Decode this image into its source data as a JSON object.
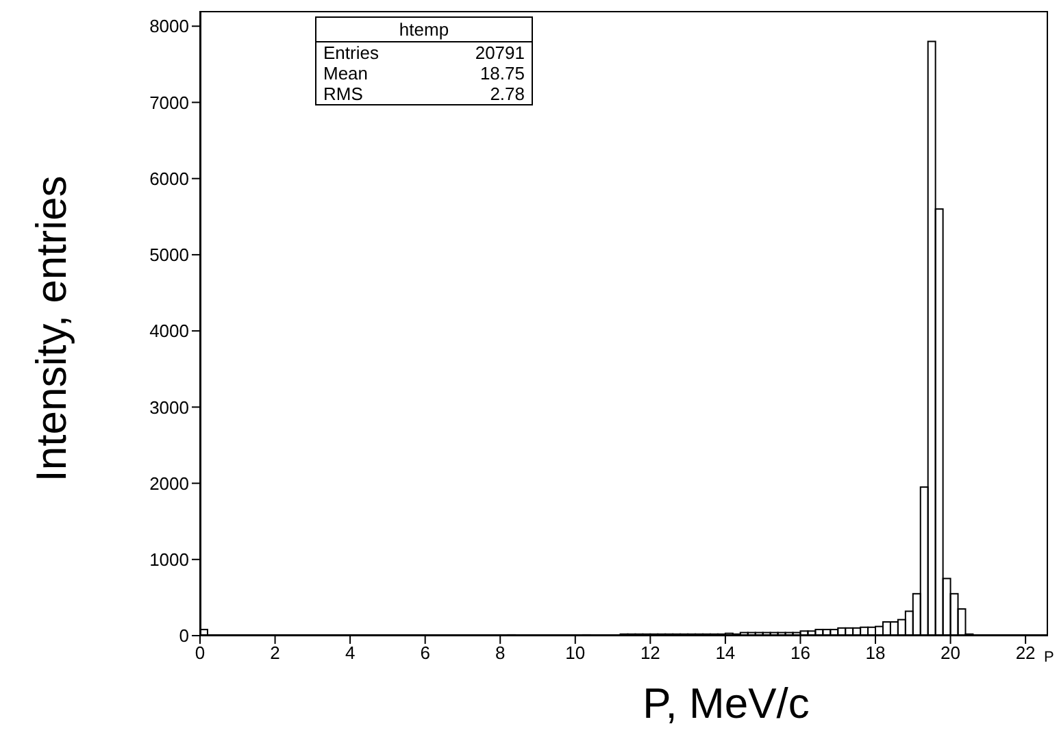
{
  "chart_data": {
    "type": "histogram",
    "xlabel": "P, MeV/c",
    "ylabel": "Intensity, entries",
    "bins": [
      0,
      0.2,
      0.4,
      0.6,
      0.8,
      1,
      1.2,
      1.4,
      1.6,
      1.8,
      2,
      2.2,
      2.4,
      2.6,
      2.8,
      3,
      3.2,
      3.4,
      3.6,
      3.8,
      4,
      4.2,
      4.4,
      4.6,
      4.8,
      5,
      5.2,
      5.4,
      5.6,
      5.8,
      6,
      6.2,
      6.4,
      6.6,
      6.8,
      7,
      7.2,
      7.4,
      7.6,
      7.8,
      8,
      8.2,
      8.4,
      8.6,
      8.8,
      9,
      9.2,
      9.4,
      9.6,
      9.8,
      10,
      10.2,
      10.4,
      10.6,
      10.8,
      11,
      11.2,
      11.4,
      11.6,
      11.8,
      12,
      12.2,
      12.4,
      12.6,
      12.8,
      13,
      13.2,
      13.4,
      13.6,
      13.8,
      14,
      14.2,
      14.4,
      14.6,
      14.8,
      15,
      15.2,
      15.4,
      15.6,
      15.8,
      16,
      16.2,
      16.4,
      16.6,
      16.8,
      17,
      17.2,
      17.4,
      17.6,
      17.8,
      18,
      18.2,
      18.4,
      18.6,
      18.8,
      19,
      19.2,
      19.4,
      19.6,
      19.8,
      20,
      20.2,
      20.4,
      20.6,
      20.8,
      21,
      21.2,
      21.4,
      21.6,
      21.8,
      22,
      22.2,
      22.4,
      22.6
    ],
    "values": [
      80,
      0,
      0,
      0,
      0,
      0,
      0,
      0,
      0,
      0,
      0,
      0,
      0,
      0,
      0,
      0,
      0,
      0,
      0,
      0,
      0,
      0,
      0,
      0,
      0,
      0,
      0,
      0,
      0,
      0,
      0,
      0,
      0,
      0,
      0,
      0,
      0,
      0,
      0,
      0,
      0,
      10,
      0,
      0,
      0,
      0,
      0,
      0,
      0,
      0,
      0,
      10,
      0,
      0,
      0,
      0,
      20,
      20,
      20,
      20,
      20,
      20,
      20,
      20,
      20,
      20,
      20,
      20,
      20,
      20,
      30,
      20,
      40,
      40,
      40,
      40,
      40,
      40,
      40,
      40,
      60,
      60,
      80,
      80,
      80,
      100,
      100,
      100,
      110,
      110,
      120,
      180,
      180,
      210,
      320,
      550,
      1950,
      7800,
      5600,
      750,
      550,
      350,
      20,
      0,
      0,
      0,
      0,
      0,
      0,
      0,
      0,
      0,
      0
    ],
    "color": "#000000",
    "xlim": [
      0,
      22.6
    ],
    "xticks": [
      0,
      2,
      4,
      6,
      8,
      10,
      12,
      14,
      16,
      18,
      20,
      22
    ],
    "ylim": [
      0,
      8200
    ],
    "yticks": [
      0,
      1000,
      2000,
      3000,
      4000,
      5000,
      6000,
      7000,
      8000
    ],
    "grid": false,
    "legend": false,
    "annotations": [
      "htemp",
      "Entries",
      "20791",
      "Mean",
      "18.75",
      "RMS",
      "2.78",
      "P"
    ]
  }
}
